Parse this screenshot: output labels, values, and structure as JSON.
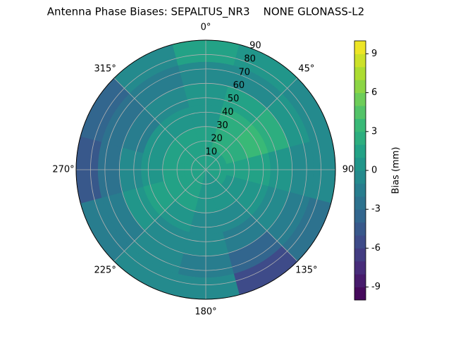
{
  "chart_data": {
    "type": "polar_contour",
    "title": "Antenna Phase Biases: SEPALTUS_NR3    NONE GLONASS-L2",
    "colormap": "viridis",
    "theta_direction": "clockwise",
    "theta_zero": "N",
    "thetaticks": [
      {
        "value": 0,
        "label": "0°"
      },
      {
        "value": 45,
        "label": "45°"
      },
      90,
      {
        "value": 135,
        "label": "135°"
      },
      {
        "value": 180,
        "label": "180°"
      },
      {
        "value": 225,
        "label": "225°"
      },
      {
        "value": 270,
        "label": "270°"
      },
      {
        "value": 315,
        "label": "315°"
      }
    ],
    "rlim": [
      0,
      90
    ],
    "rticks": [
      10,
      20,
      30,
      40,
      50,
      60,
      70,
      80,
      90
    ],
    "grid": true,
    "azimuths": [
      0,
      30,
      60,
      90,
      120,
      150,
      180,
      210,
      240,
      270,
      300,
      330
    ],
    "zenith_bins": [
      0,
      15,
      30,
      45,
      60,
      75,
      90
    ],
    "values": [
      [
        1,
        1,
        0.5,
        0,
        -1,
        1
      ],
      [
        1,
        2,
        2,
        1,
        -1,
        0
      ],
      [
        1,
        2,
        3,
        2,
        0,
        -1
      ],
      [
        1,
        1,
        1,
        0,
        -1,
        -1
      ],
      [
        1,
        0,
        0,
        -1,
        -2,
        -3
      ],
      [
        0,
        0,
        -1,
        -2,
        -4,
        -6
      ],
      [
        0,
        0,
        -1,
        -1,
        -2,
        -1
      ],
      [
        1,
        1,
        0,
        -1,
        -1,
        -1
      ],
      [
        1,
        1,
        1,
        0,
        -2,
        -2
      ],
      [
        1,
        1,
        0,
        -1,
        -3,
        -5
      ],
      [
        1,
        1,
        0,
        -2,
        -3,
        -4
      ],
      [
        1,
        1,
        0,
        -1,
        -2,
        -1
      ]
    ],
    "colorbar": {
      "label": "Bias (mm)",
      "clim": [
        -10,
        10
      ],
      "ticks": [
        -9,
        -6,
        -3,
        0,
        3,
        6,
        9
      ]
    }
  }
}
